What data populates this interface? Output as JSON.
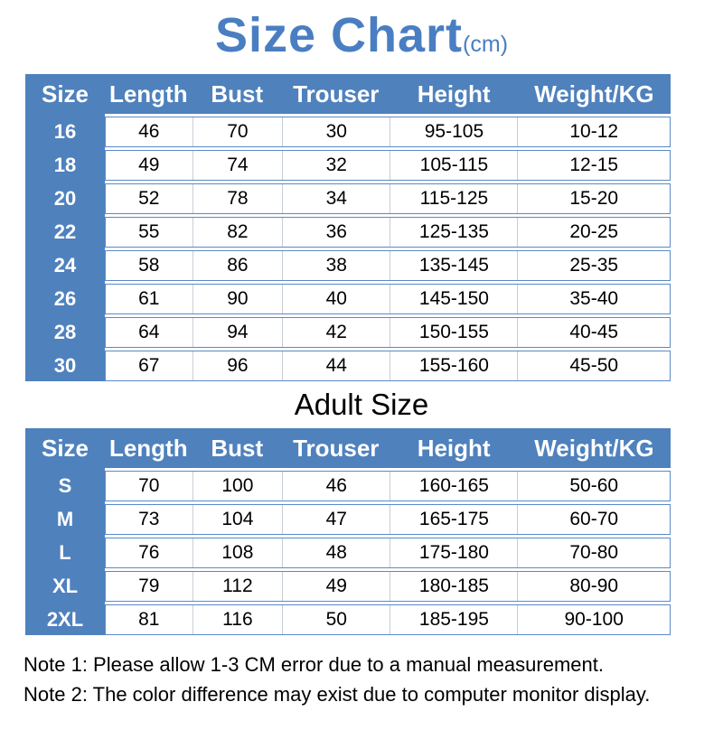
{
  "title": {
    "text": "Size Chart",
    "unit": "(cm)"
  },
  "colors": {
    "table_blue": "#4f81bd",
    "title_blue": "#4a7ec2",
    "row_border_blue": "#5b8ac6",
    "column_divider": "#c6cdd6",
    "header_text": "#ffffff",
    "body_text": "#000000"
  },
  "notes": [
    "Note 1: Please allow 1-3 CM error due to a manual measurement.",
    "Note 2: The color difference may exist due to computer monitor display."
  ],
  "chart_data": [
    {
      "type": "table",
      "title": "Size Chart (cm)",
      "columns": [
        "Size",
        "Length",
        "Bust",
        "Trouser",
        "Height",
        "Weight/KG"
      ],
      "rows": [
        [
          "16",
          "46",
          "70",
          "30",
          "95-105",
          "10-12"
        ],
        [
          "18",
          "49",
          "74",
          "32",
          "105-115",
          "12-15"
        ],
        [
          "20",
          "52",
          "78",
          "34",
          "115-125",
          "15-20"
        ],
        [
          "22",
          "55",
          "82",
          "36",
          "125-135",
          "20-25"
        ],
        [
          "24",
          "58",
          "86",
          "38",
          "135-145",
          "25-35"
        ],
        [
          "26",
          "61",
          "90",
          "40",
          "145-150",
          "35-40"
        ],
        [
          "28",
          "64",
          "94",
          "42",
          "150-155",
          "40-45"
        ],
        [
          "30",
          "67",
          "96",
          "44",
          "155-160",
          "45-50"
        ]
      ]
    },
    {
      "type": "table",
      "title": "Adult Size",
      "columns": [
        "Size",
        "Length",
        "Bust",
        "Trouser",
        "Height",
        "Weight/KG"
      ],
      "rows": [
        [
          "S",
          "70",
          "100",
          "46",
          "160-165",
          "50-60"
        ],
        [
          "M",
          "73",
          "104",
          "47",
          "165-175",
          "60-70"
        ],
        [
          "L",
          "76",
          "108",
          "48",
          "175-180",
          "70-80"
        ],
        [
          "XL",
          "79",
          "112",
          "49",
          "180-185",
          "80-90"
        ],
        [
          "2XL",
          "81",
          "116",
          "50",
          "185-195",
          "90-100"
        ]
      ]
    }
  ]
}
